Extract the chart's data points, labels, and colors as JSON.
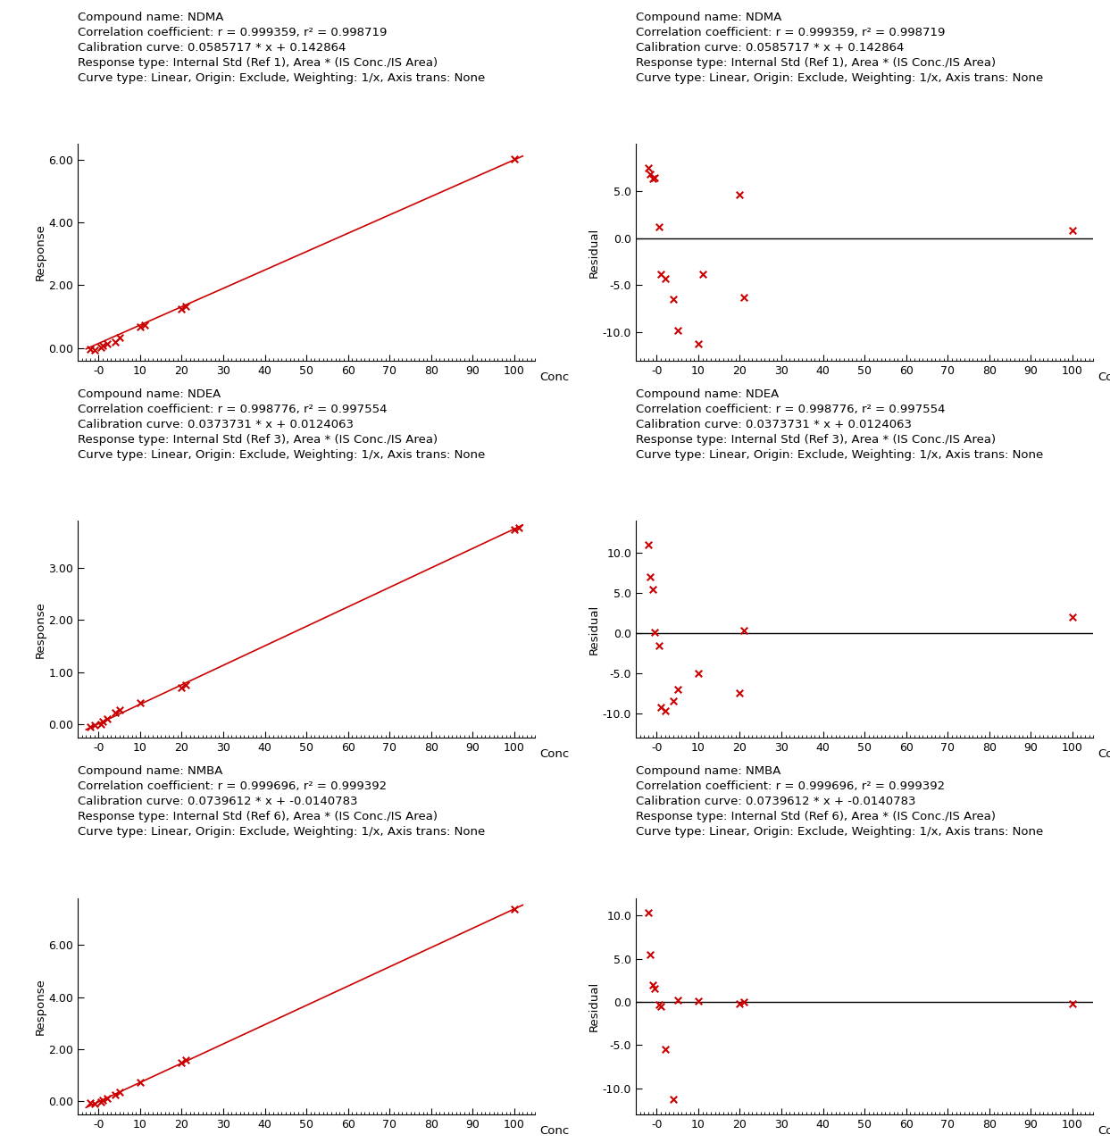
{
  "compounds": [
    {
      "name": "NDMA",
      "r": "0.999359",
      "r2": "0.998719",
      "slope": 0.0585717,
      "intercept": 0.142864,
      "calib_str": "0.0585717 * x + 0.142864",
      "response_type": "Internal Std (Ref 1), Area * (IS Conc./IS Area)",
      "curve_type": "Linear, Origin: Exclude, Weighting: 1/x, Axis trans: None",
      "scatter_x": [
        -2,
        -1,
        0.5,
        1,
        2,
        4,
        5,
        10,
        11,
        20,
        21,
        100
      ],
      "scatter_y": [
        -0.03,
        -0.07,
        0.02,
        0.07,
        0.12,
        0.19,
        0.32,
        0.68,
        0.73,
        1.25,
        1.33,
        6.02
      ],
      "residual_x": [
        -2,
        -1.5,
        -1,
        -0.5,
        0.5,
        1,
        2,
        4,
        5,
        10,
        11,
        20,
        21,
        100
      ],
      "residual_y": [
        7.5,
        6.8,
        6.3,
        6.4,
        1.2,
        -3.8,
        -4.3,
        -6.5,
        -9.8,
        -11.2,
        -3.8,
        4.6,
        -6.3,
        0.8
      ],
      "ylim_response": [
        -0.4,
        6.5
      ],
      "yticks_response": [
        0.0,
        2.0,
        4.0,
        6.0
      ],
      "ylim_residual": [
        -13,
        10
      ],
      "yticks_residual": [
        -10.0,
        -5.0,
        0.0,
        5.0
      ],
      "conc_xlim": [
        -5,
        105
      ],
      "conc_xticks": [
        0,
        10,
        20,
        30,
        40,
        50,
        60,
        70,
        80,
        90,
        100
      ]
    },
    {
      "name": "NDEA",
      "r": "0.998776",
      "r2": "0.997554",
      "slope": 0.0373731,
      "intercept": 0.0124063,
      "calib_str": "0.0373731 * x + 0.0124063",
      "response_type": "Internal Std (Ref 3), Area * (IS Conc./IS Area)",
      "curve_type": "Linear, Origin: Exclude, Weighting: 1/x, Axis trans: None",
      "scatter_x": [
        -2,
        -1,
        0.5,
        1,
        2,
        4,
        5,
        10,
        20,
        21,
        100,
        101
      ],
      "scatter_y": [
        -0.04,
        -0.02,
        0.01,
        0.06,
        0.1,
        0.22,
        0.27,
        0.42,
        0.71,
        0.75,
        3.74,
        3.77
      ],
      "residual_x": [
        -2,
        -1.5,
        -1,
        -0.5,
        0.5,
        1,
        2,
        4,
        5,
        10,
        20,
        21,
        100
      ],
      "residual_y": [
        11.0,
        7.0,
        5.5,
        0.1,
        -1.5,
        -9.2,
        -9.7,
        -8.5,
        -7.0,
        -5.0,
        -7.5,
        0.3,
        2.0
      ],
      "ylim_response": [
        -0.25,
        3.9
      ],
      "yticks_response": [
        0.0,
        1.0,
        2.0,
        3.0
      ],
      "ylim_residual": [
        -13,
        14
      ],
      "yticks_residual": [
        -10.0,
        -5.0,
        0.0,
        5.0,
        10.0
      ],
      "conc_xlim": [
        -5,
        105
      ],
      "conc_xticks": [
        0,
        10,
        20,
        30,
        40,
        50,
        60,
        70,
        80,
        90,
        100
      ]
    },
    {
      "name": "NMBA",
      "r": "0.999696",
      "r2": "0.999392",
      "slope": 0.0739612,
      "intercept": -0.0140783,
      "calib_str": "0.0739612 * x + -0.0140783",
      "response_type": "Internal Std (Ref 6), Area * (IS Conc./IS Area)",
      "curve_type": "Linear, Origin: Exclude, Weighting: 1/x, Axis trans: None",
      "scatter_x": [
        -2,
        -1,
        0.5,
        1,
        2,
        4,
        5,
        10,
        20,
        21,
        100
      ],
      "scatter_y": [
        -0.06,
        -0.09,
        -0.01,
        0.04,
        0.12,
        0.27,
        0.37,
        0.73,
        1.47,
        1.58,
        7.37
      ],
      "residual_x": [
        -2,
        -1.5,
        -1,
        -0.5,
        0.5,
        1,
        2,
        4,
        5,
        10,
        20,
        21,
        100
      ],
      "residual_y": [
        10.3,
        5.5,
        2.0,
        1.5,
        -0.3,
        -0.5,
        -5.5,
        -11.2,
        0.2,
        0.1,
        -0.2,
        0.0,
        -0.2
      ],
      "ylim_response": [
        -0.5,
        7.8
      ],
      "yticks_response": [
        0.0,
        2.0,
        4.0,
        6.0
      ],
      "ylim_residual": [
        -13,
        12
      ],
      "yticks_residual": [
        -10.0,
        -5.0,
        0.0,
        5.0,
        10.0
      ],
      "conc_xlim": [
        -5,
        105
      ],
      "conc_xticks": [
        0,
        10,
        20,
        30,
        40,
        50,
        60,
        70,
        80,
        90,
        100
      ]
    }
  ],
  "marker_color": "#cc0000",
  "line_color": "#cc0000",
  "hline_color": "#000000",
  "axis_color": "#000000",
  "text_color": "#000000",
  "bg_color": "#ffffff",
  "marker": "x",
  "marker_size": 7,
  "marker_linewidth": 1.5,
  "line_width": 1.2,
  "font_size_annotation": 9.5,
  "font_size_axis_label": 9.5,
  "font_size_tick": 9
}
